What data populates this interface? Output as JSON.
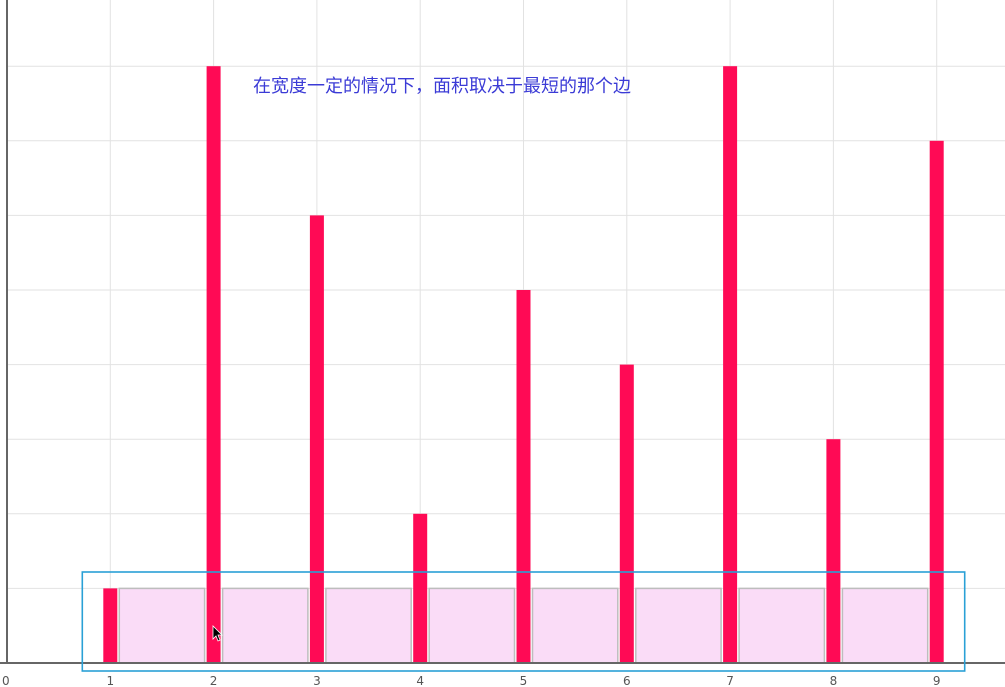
{
  "chart_data": {
    "type": "bar",
    "categories": [
      "1",
      "2",
      "3",
      "4",
      "5",
      "6",
      "7",
      "8",
      "9"
    ],
    "values": [
      1,
      8,
      6,
      2,
      5,
      4,
      8,
      3,
      7
    ],
    "x_origin_label": "0",
    "xlim": [
      0,
      9.5
    ],
    "ylim": [
      0,
      8.8
    ],
    "grid": true,
    "annotation": "在宽度一定的情况下，面积取决于最短的那个边",
    "highlight": {
      "kind": "min-height-area",
      "height": 1,
      "from_category": "1",
      "to_category": "9"
    },
    "colors": {
      "bar": "#ff0a55",
      "area_fill": "#fadcf7",
      "area_stroke": "#bdbdbd",
      "highlight_box": "#2aa0d6",
      "grid": "#e2e2e2",
      "axis": "#666666",
      "annotation": "#3b3bd6"
    }
  }
}
